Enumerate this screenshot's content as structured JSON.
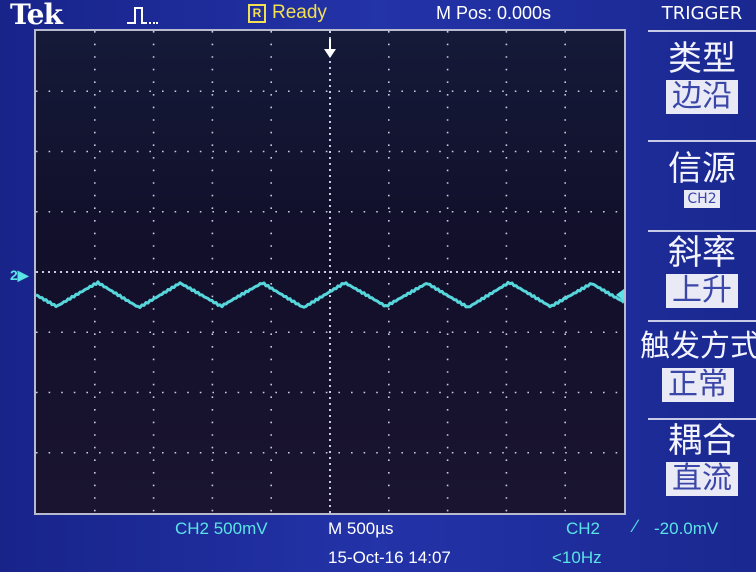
{
  "header": {
    "brand": "Tek",
    "acquisition_icon": "pulse-waveform-icon",
    "run_flag": "R",
    "run_status": "Ready",
    "m_pos": "M Pos: 0.000s"
  },
  "menu": {
    "title": "TRIGGER",
    "items": [
      {
        "label": "类型",
        "value": "边沿"
      },
      {
        "label": "信源",
        "value": "CH2"
      },
      {
        "label": "斜率",
        "value": "上升"
      },
      {
        "label": "触发方式",
        "value": "正常"
      },
      {
        "label": "耦合",
        "value": "直流"
      }
    ]
  },
  "display": {
    "channel_marker": "2",
    "trace_color": "#5be3e6",
    "grid_divisions_x": 10,
    "grid_divisions_y": 8,
    "waveform": {
      "channel": "CH2",
      "shape": "triangle",
      "period_divisions": 1.4,
      "amplitude_divisions": 0.2,
      "offset_divisions": 0.17
    }
  },
  "footer": {
    "channel_scale": "CH2  500mV",
    "timebase": "M 500µs",
    "trigger_source": "CH2",
    "trigger_slope": "∕",
    "trigger_level": "-20.0mV",
    "datetime": "15-Oct-16 14:07",
    "frequency": "<10Hz"
  }
}
